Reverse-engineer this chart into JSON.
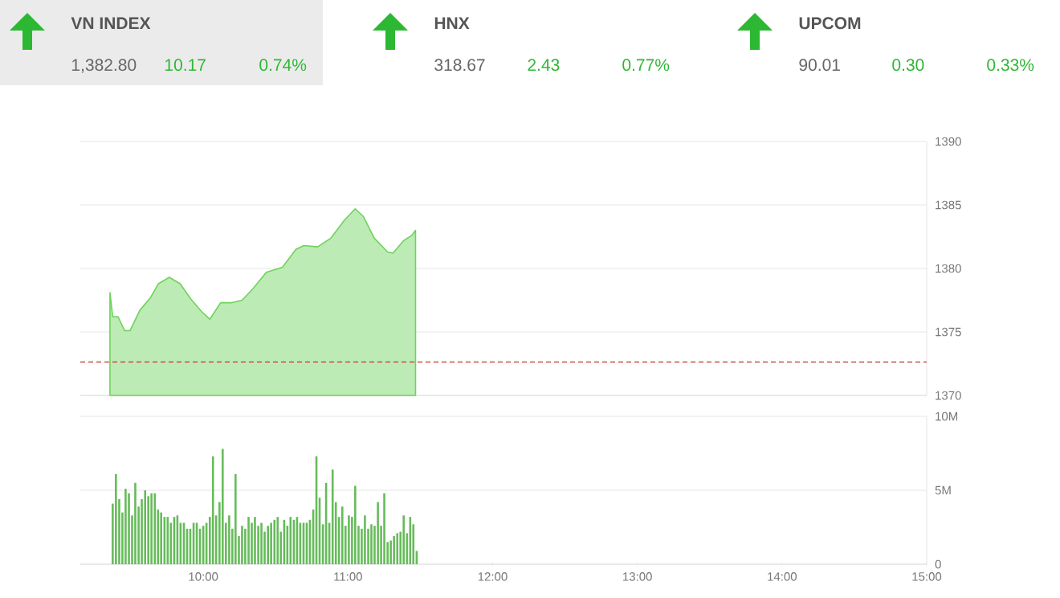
{
  "chart_data": [
    {
      "type": "other",
      "title": "VN INDEX",
      "annotations": [
        "1,382.80",
        "10.17",
        "0.74%"
      ]
    },
    {
      "type": "other",
      "title": "HNX",
      "annotations": [
        "318.67",
        "2.43",
        "0.77%"
      ]
    },
    {
      "type": "other",
      "title": "UPCOM",
      "annotations": [
        "90.01",
        "0.30",
        "0.33%"
      ]
    },
    {
      "type": "area",
      "color": "#6dd35a",
      "xlim": [
        9.15,
        15
      ],
      "ylim": [
        1370,
        1390
      ],
      "yticks": [
        1370,
        1375,
        1380,
        1385,
        1390
      ],
      "grid": "y",
      "tick_labels": "y",
      "x": [
        9.355,
        9.374,
        9.411,
        9.456,
        9.494,
        9.561,
        9.635,
        9.69,
        9.765,
        9.84,
        9.914,
        9.989,
        10.045,
        10.12,
        10.193,
        10.268,
        10.343,
        10.436,
        10.547,
        10.64,
        10.696,
        10.79,
        10.883,
        10.975,
        11.05,
        11.106,
        11.181,
        11.274,
        11.311,
        11.385,
        11.441,
        11.467
      ],
      "values": [
        1378.1,
        1376.2,
        1376.2,
        1375.1,
        1375.1,
        1376.7,
        1377.7,
        1378.8,
        1379.3,
        1378.8,
        1377.6,
        1376.6,
        1376.0,
        1377.3,
        1377.3,
        1377.5,
        1378.4,
        1379.7,
        1380.1,
        1381.5,
        1381.8,
        1381.7,
        1382.4,
        1383.8,
        1384.7,
        1384.1,
        1382.4,
        1381.3,
        1381.2,
        1382.2,
        1382.6,
        1383.0
      ],
      "ref_lines": [
        {
          "axis": "y",
          "value": 1372.63,
          "color": "#c0392b",
          "line_style": "dashed"
        }
      ]
    },
    {
      "type": "bar",
      "color": "#66bb5a",
      "xlim": [
        9.15,
        15
      ],
      "ylim": [
        0,
        10
      ],
      "grid": "y",
      "xticks": [
        {
          "value": 10,
          "label": "10:00"
        },
        {
          "value": 11,
          "label": "11:00"
        },
        {
          "value": 12,
          "label": "12:00"
        },
        {
          "value": 13,
          "label": "13:00"
        },
        {
          "value": 14,
          "label": "14:00"
        },
        {
          "value": 15,
          "label": "15:00"
        }
      ],
      "yticks": [
        0,
        {
          "value": 5,
          "label": "5M"
        },
        {
          "value": 10,
          "label": "10M"
        }
      ],
      "x": [
        9.374,
        9.396,
        9.419,
        9.441,
        9.463,
        9.486,
        9.508,
        9.53,
        9.553,
        9.575,
        9.598,
        9.62,
        9.642,
        9.665,
        9.687,
        9.709,
        9.732,
        9.754,
        9.776,
        9.799,
        9.821,
        9.843,
        9.866,
        9.888,
        9.91,
        9.933,
        9.955,
        9.977,
        10.0,
        10.022,
        10.045,
        10.067,
        10.089,
        10.112,
        10.134,
        10.156,
        10.179,
        10.201,
        10.223,
        10.246,
        10.268,
        10.29,
        10.313,
        10.335,
        10.357,
        10.38,
        10.402,
        10.424,
        10.447,
        10.469,
        10.492,
        10.514,
        10.536,
        10.559,
        10.581,
        10.603,
        10.626,
        10.648,
        10.67,
        10.693,
        10.715,
        10.737,
        10.76,
        10.782,
        10.804,
        10.827,
        10.849,
        10.871,
        10.894,
        10.916,
        10.938,
        10.961,
        10.983,
        11.006,
        11.028,
        11.05,
        11.073,
        11.095,
        11.117,
        11.14,
        11.162,
        11.184,
        11.207,
        11.229,
        11.251,
        11.274,
        11.296,
        11.318,
        11.341,
        11.363,
        11.385,
        11.408,
        11.43,
        11.452,
        11.475
      ],
      "values": [
        4.1,
        6.1,
        4.4,
        3.5,
        5.1,
        4.8,
        3.3,
        5.5,
        3.9,
        4.4,
        5.0,
        4.6,
        4.8,
        4.8,
        3.7,
        3.5,
        3.2,
        3.2,
        2.8,
        3.2,
        3.3,
        2.8,
        2.8,
        2.4,
        2.4,
        2.8,
        2.8,
        2.4,
        2.6,
        2.8,
        3.2,
        7.3,
        3.3,
        4.2,
        7.8,
        2.8,
        3.3,
        2.4,
        6.1,
        1.9,
        2.6,
        2.4,
        3.2,
        2.8,
        3.2,
        2.6,
        2.8,
        2.2,
        2.6,
        2.8,
        3.0,
        3.2,
        2.2,
        3.0,
        2.6,
        3.2,
        3.0,
        3.2,
        2.8,
        2.8,
        2.8,
        3.0,
        3.7,
        7.3,
        4.5,
        2.7,
        5.5,
        2.8,
        6.4,
        4.2,
        3.2,
        3.9,
        2.6,
        3.3,
        3.2,
        5.3,
        2.6,
        2.4,
        3.3,
        2.4,
        2.7,
        2.6,
        4.2,
        2.6,
        4.8,
        1.5,
        1.6,
        1.9,
        2.1,
        2.2,
        3.3,
        2.1,
        3.2,
        2.7,
        0.9
      ]
    }
  ]
}
